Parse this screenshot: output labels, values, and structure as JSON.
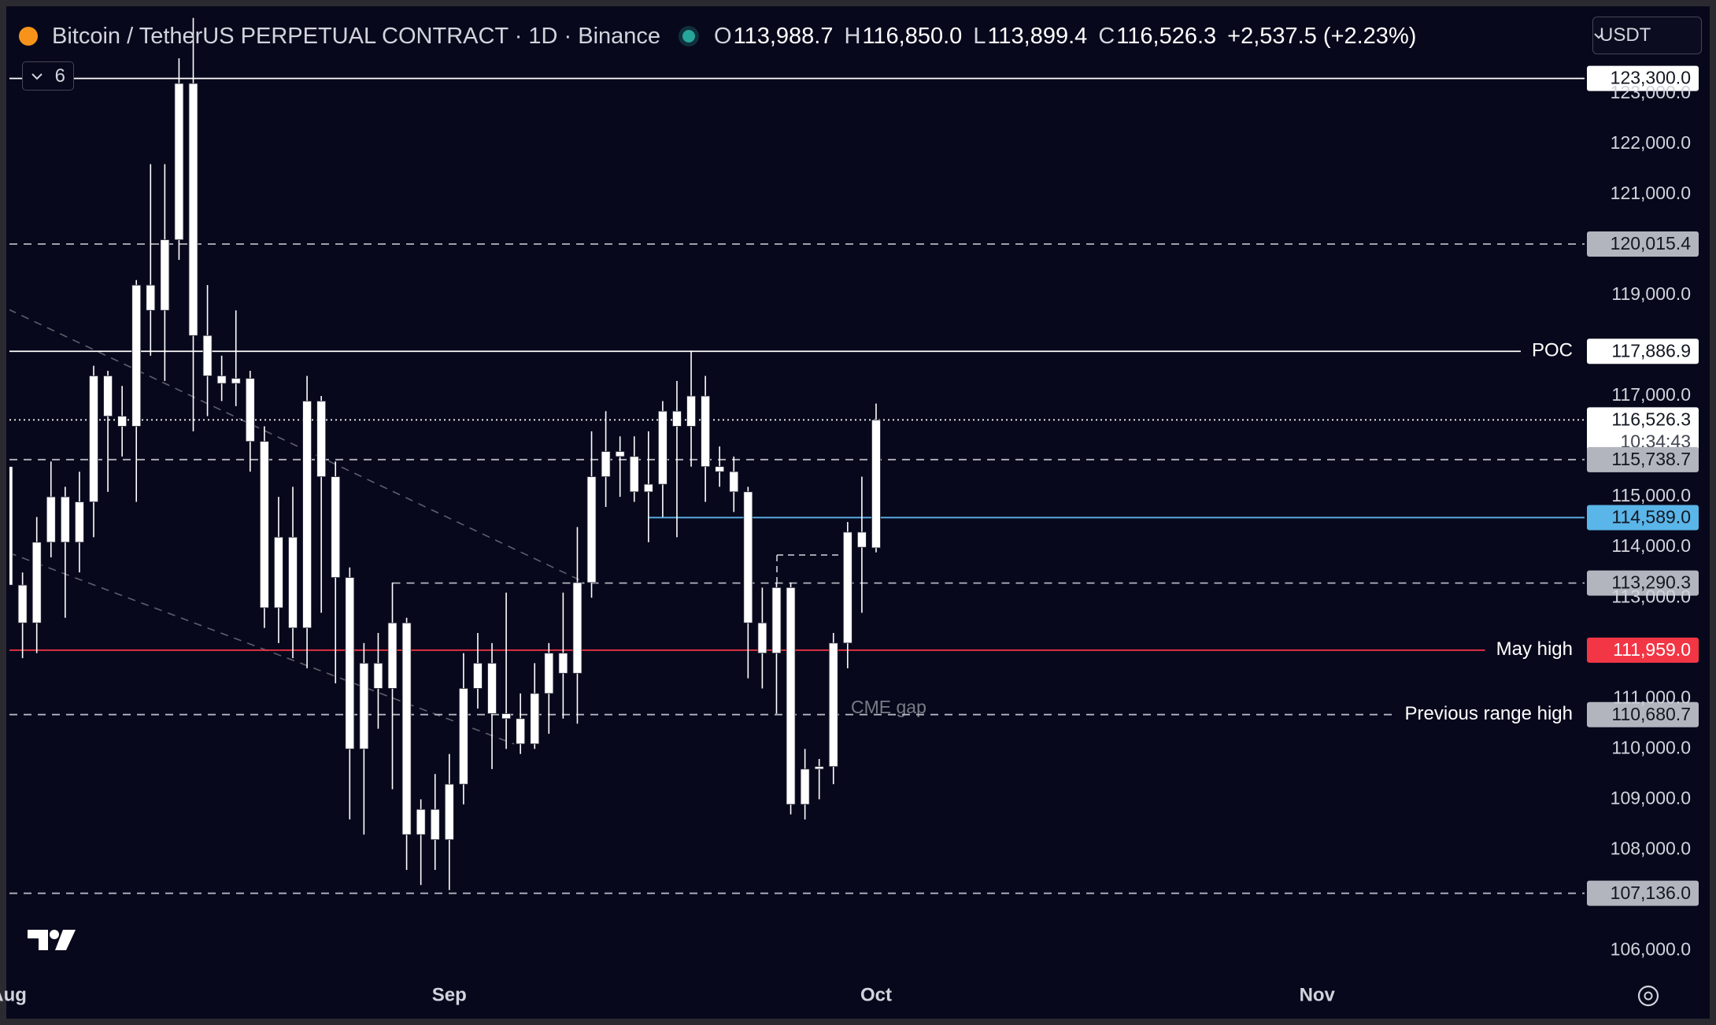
{
  "header": {
    "symbol": "Bitcoin / TetherUS PERPETUAL CONTRACT · 1D · Binance",
    "ohlc": [
      {
        "key": "O",
        "value": "113,988.7"
      },
      {
        "key": "H",
        "value": "116,850.0"
      },
      {
        "key": "L",
        "value": "113,899.4"
      },
      {
        "key": "C",
        "value": "116,526.3"
      }
    ],
    "change": "+2,537.5 (+2.23%)",
    "indicators_count": "6",
    "currency": "USDT"
  },
  "chart_data": {
    "type": "candlestick",
    "color": "#ffffff",
    "x": [
      0,
      1,
      2,
      3,
      4,
      5,
      6,
      7,
      8,
      9,
      10,
      11,
      12,
      13,
      14,
      15,
      16,
      17,
      18,
      19,
      20,
      21,
      22,
      23,
      24,
      25,
      26,
      27,
      28,
      29,
      30,
      31,
      32,
      33,
      34,
      35,
      36,
      37,
      38,
      39,
      40,
      41,
      42,
      43,
      44,
      45,
      46,
      47,
      48,
      49,
      50,
      51,
      52,
      53,
      54,
      55,
      56,
      57,
      58,
      59,
      60,
      61
    ],
    "open": [
      115600,
      113250,
      112500,
      114100,
      115000,
      114100,
      114900,
      117400,
      116600,
      116400,
      119200,
      118700,
      120100,
      123200,
      118200,
      117400,
      117250,
      117350,
      116100,
      112800,
      114200,
      112400,
      116900,
      115400,
      113400,
      110000,
      111700,
      111200,
      112500,
      108300,
      108800,
      108200,
      109300,
      111200,
      111700,
      110700,
      110600,
      110100,
      111100,
      111900,
      111500,
      113300,
      115400,
      115900,
      115800,
      115100,
      115250,
      116700,
      116400,
      117000,
      115600,
      115500,
      115100,
      112500,
      111900,
      113200,
      108900,
      109600,
      109650,
      112100,
      114300,
      113988.7
    ],
    "high": [
      116000,
      113500,
      114600,
      115700,
      115200,
      115500,
      117600,
      117500,
      117200,
      119300,
      121600,
      121600,
      123700,
      124500,
      119200,
      117800,
      118700,
      117500,
      116400,
      115000,
      115200,
      117400,
      117000,
      115700,
      113600,
      112100,
      112300,
      113300,
      112600,
      109000,
      109500,
      109900,
      111900,
      112300,
      112100,
      113100,
      111100,
      111700,
      112100,
      113100,
      114400,
      116300,
      116700,
      116200,
      116200,
      116300,
      116900,
      117300,
      117900,
      117400,
      116000,
      115800,
      115200,
      113200,
      113300,
      113300,
      110000,
      109800,
      112300,
      114500,
      115400,
      116850
    ],
    "low": [
      112900,
      111800,
      111900,
      113800,
      112600,
      113500,
      114200,
      115100,
      115800,
      114900,
      117800,
      117300,
      119700,
      116300,
      116600,
      116900,
      116800,
      115500,
      112400,
      112100,
      111800,
      111600,
      112700,
      111300,
      108600,
      108300,
      110400,
      109200,
      107600,
      107300,
      107600,
      107200,
      108900,
      110800,
      109600,
      110000,
      109900,
      110000,
      110300,
      110600,
      110500,
      113000,
      114800,
      115000,
      114900,
      114100,
      114600,
      114200,
      115600,
      114900,
      115200,
      114700,
      111400,
      111200,
      110700,
      108700,
      108600,
      109000,
      109300,
      111600,
      112700,
      113899.4
    ],
    "close": [
      113250,
      112500,
      114100,
      115000,
      114100,
      114900,
      117400,
      116600,
      116400,
      119200,
      118700,
      120100,
      123200,
      118200,
      117400,
      117250,
      117350,
      116100,
      112800,
      114200,
      112400,
      116900,
      115400,
      113400,
      110000,
      111700,
      111200,
      112500,
      108300,
      108800,
      108200,
      109300,
      111200,
      111700,
      110700,
      110600,
      110100,
      111100,
      111900,
      111500,
      113300,
      115400,
      115900,
      115800,
      115100,
      115250,
      116700,
      116400,
      117000,
      115600,
      115500,
      115100,
      112500,
      111900,
      113200,
      108900,
      109600,
      109650,
      112100,
      114300,
      114000,
      116526.3
    ],
    "xlim": [
      0.08,
      110.8
    ],
    "xticks": [
      {
        "value": 0,
        "label": "Aug"
      },
      {
        "value": 31,
        "label": "Sep"
      },
      {
        "value": 61,
        "label": "Oct"
      },
      {
        "value": 92,
        "label": "Nov"
      }
    ],
    "ylim": [
      105460,
      124700
    ],
    "yticks": [
      {
        "value": 106000,
        "label": "106,000.0"
      },
      {
        "value": 108000,
        "label": "108,000.0"
      },
      {
        "value": 109000,
        "label": "109,000.0"
      },
      {
        "value": 110000,
        "label": "110,000.0"
      },
      {
        "value": 111000,
        "label": "111,000.0"
      },
      {
        "value": 113000,
        "label": "113,000.0"
      },
      {
        "value": 114000,
        "label": "114,000.0"
      },
      {
        "value": 115000,
        "label": "115,000.0"
      },
      {
        "value": 117000,
        "label": "117,000.0"
      },
      {
        "value": 119000,
        "label": "119,000.0"
      },
      {
        "value": 121000,
        "label": "121,000.0"
      },
      {
        "value": 122000,
        "label": "122,000.0"
      },
      {
        "value": 123000,
        "label": "123,000.0"
      }
    ],
    "grid": true,
    "levels": [
      {
        "value": 123300,
        "label": "123,300.0",
        "style": "solid",
        "color": "#ffffff",
        "badge": "#ffffff"
      },
      {
        "value": 120015.4,
        "label": "120,015.4",
        "style": "dashed",
        "color": "#b2b5be",
        "badge": "#b2b5be"
      },
      {
        "value": 117886.9,
        "label": "117,886.9",
        "style": "solid",
        "color": "#ffffff",
        "badge": "#ffffff",
        "name": "POC"
      },
      {
        "value": 116526.3,
        "label": "116,526.3",
        "style": "dotted",
        "color": "#ffffff",
        "badge": "#ffffff",
        "countdown": "10:34:43"
      },
      {
        "value": 115738.7,
        "label": "115,738.7",
        "style": "dashed",
        "color": "#b2b5be",
        "badge": "#b2b5be"
      },
      {
        "value": 114589,
        "label": "114,589.0",
        "style": "solid",
        "color": "#5ab5e8",
        "badge": "#5ab5e8",
        "from": 45
      },
      {
        "value": 113290.3,
        "label": "113,290.3",
        "style": "dashed",
        "color": "#b2b5be",
        "badge": "#b2b5be",
        "from": 27
      },
      {
        "value": 111959,
        "label": "111,959.0",
        "style": "solid",
        "color": "#f23645",
        "badge": "#f23645",
        "name": "May high"
      },
      {
        "value": 110680.7,
        "label": "110,680.7",
        "style": "dashed",
        "color": "#b2b5be",
        "badge": "#b2b5be",
        "name": "Previous range high"
      },
      {
        "value": 107136,
        "label": "107,136.0",
        "style": "dashed",
        "color": "#b2b5be",
        "badge": "#b2b5be"
      }
    ],
    "annotation": "CME gap"
  }
}
